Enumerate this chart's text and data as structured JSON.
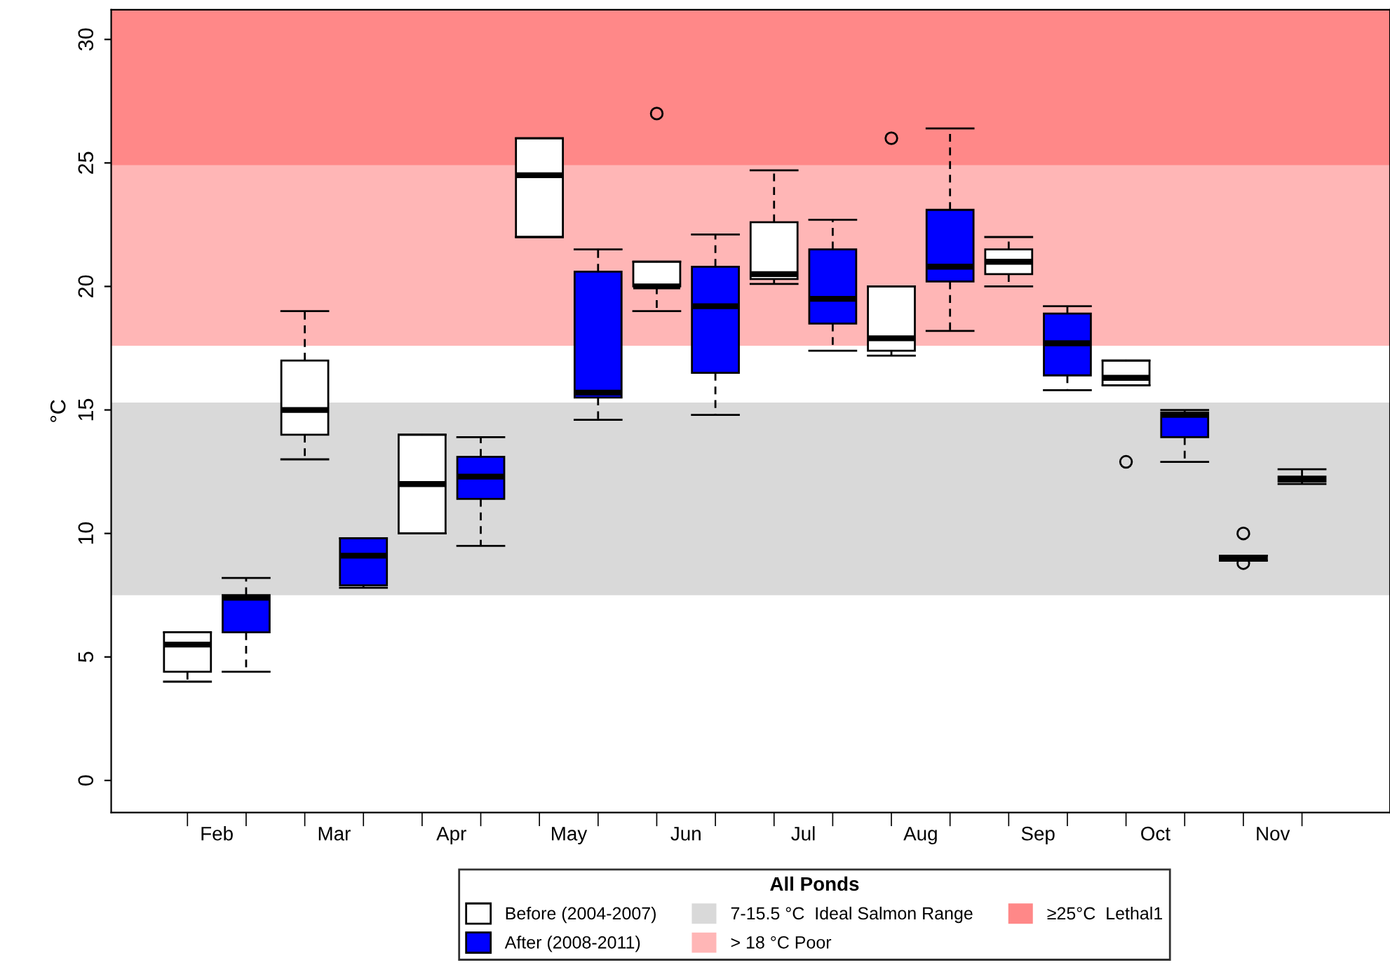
{
  "chart_data": {
    "type": "box",
    "ylabel": "°C",
    "legend_title": "All Ponds",
    "categories": [
      "Feb",
      "Mar",
      "Apr",
      "May",
      "Jun",
      "Jul",
      "Aug",
      "Sep",
      "Oct",
      "Nov"
    ],
    "ylim": [
      -1.3,
      31.2
    ],
    "yticks": [
      0,
      5,
      10,
      15,
      20,
      25,
      30
    ],
    "grid": false,
    "legend": "bottom",
    "series": [
      {
        "name": "Before (2004-2007)",
        "color": "#ffffff",
        "boxes": [
          {
            "low": 4.0,
            "q1": 4.4,
            "median": 5.5,
            "q3": 6.0,
            "high": 6.0
          },
          {
            "low": 13.0,
            "q1": 14.0,
            "median": 15.0,
            "q3": 17.0,
            "high": 19.0
          },
          {
            "low": 10.0,
            "q1": 10.0,
            "median": 12.0,
            "q3": 14.0,
            "high": 14.0
          },
          {
            "low": 22.0,
            "q1": 22.0,
            "median": 24.5,
            "q3": 26.0,
            "high": 26.0
          },
          {
            "low": 19.0,
            "q1": 20.0,
            "median": 20.0,
            "q3": 21.0,
            "high": 21.0,
            "outliers": [
              27.0
            ]
          },
          {
            "low": 20.1,
            "q1": 20.3,
            "median": 20.5,
            "q3": 22.6,
            "high": 24.7
          },
          {
            "low": 17.2,
            "q1": 17.4,
            "median": 17.9,
            "q3": 20.0,
            "high": 20.0,
            "outliers": [
              26.0
            ]
          },
          {
            "low": 20.0,
            "q1": 20.5,
            "median": 21.0,
            "q3": 21.5,
            "high": 22.0
          },
          {
            "low": 16.0,
            "q1": 16.0,
            "median": 16.3,
            "q3": 17.0,
            "high": 17.0,
            "outliers": [
              12.9
            ]
          },
          {
            "low": 8.9,
            "q1": 8.9,
            "median": 9.0,
            "q3": 9.1,
            "high": 9.1,
            "outliers": [
              10.0,
              8.8
            ]
          }
        ]
      },
      {
        "name": "After (2008-2011)",
        "color": "#0000ff",
        "boxes": [
          {
            "low": 4.4,
            "q1": 6.0,
            "median": 7.4,
            "q3": 7.5,
            "high": 8.2
          },
          {
            "low": 7.8,
            "q1": 7.9,
            "median": 9.1,
            "q3": 9.8,
            "high": 9.8
          },
          {
            "low": 9.5,
            "q1": 11.4,
            "median": 12.3,
            "q3": 13.1,
            "high": 13.9
          },
          {
            "low": 14.6,
            "q1": 15.5,
            "median": 15.7,
            "q3": 20.6,
            "high": 21.5
          },
          {
            "low": 14.8,
            "q1": 16.5,
            "median": 19.2,
            "q3": 20.8,
            "high": 22.1
          },
          {
            "low": 17.4,
            "q1": 18.5,
            "median": 19.5,
            "q3": 21.5,
            "high": 22.7
          },
          {
            "low": 18.2,
            "q1": 20.2,
            "median": 20.8,
            "q3": 23.1,
            "high": 26.4
          },
          {
            "low": 15.8,
            "q1": 16.4,
            "median": 17.7,
            "q3": 18.9,
            "high": 19.2
          },
          {
            "low": 12.9,
            "q1": 13.9,
            "median": 14.8,
            "q3": 14.9,
            "high": 15.0
          },
          {
            "low": 12.0,
            "q1": 12.1,
            "median": 12.2,
            "q3": 12.3,
            "high": 12.6
          }
        ]
      }
    ],
    "bands": [
      {
        "axis": "y",
        "from": 7.5,
        "to": 15.3,
        "label": "7-15.5 °C  Ideal Salmon Range",
        "color": "#d9d9d9"
      },
      {
        "axis": "y",
        "from": 17.6,
        "to": 24.9,
        "label": "> 18 °C Poor",
        "color": "#ffb6b6"
      },
      {
        "axis": "y",
        "from": 24.9,
        "to": 31.2,
        "label": "≥25°C  Lethal1",
        "color": "#ff8888"
      }
    ]
  }
}
